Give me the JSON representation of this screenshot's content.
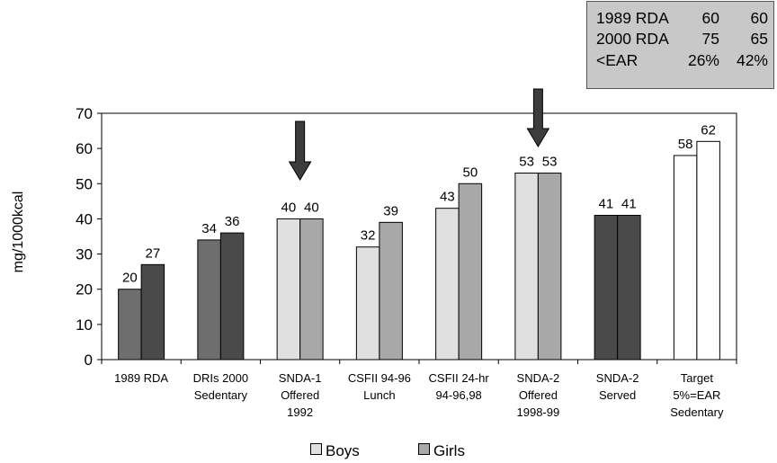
{
  "colors": {
    "dark_gray": "#6e6e6e",
    "darker_gray": "#4a4a4a",
    "light_gray": "#e0e0e0",
    "mid_gray": "#a8a8a8",
    "white": "#ffffff",
    "box_bg": "#c8c8c8"
  },
  "infobox": {
    "rows": [
      [
        "1989 RDA",
        "60",
        "60"
      ],
      [
        "2000 RDA",
        "75",
        "65"
      ],
      [
        "<EAR",
        "26%",
        "42%"
      ]
    ]
  },
  "chart_data": {
    "type": "bar",
    "title": "",
    "xlabel": "",
    "ylabel": "mg/1000kcal",
    "ylim": [
      0,
      70
    ],
    "yticks": [
      "0",
      "10",
      "20",
      "30",
      "40",
      "50",
      "60",
      "70"
    ],
    "grid": false,
    "legend_position": "bottom",
    "categories": [
      [
        "1989 RDA"
      ],
      [
        "DRIs 2000",
        "Sedentary"
      ],
      [
        "SNDA-1",
        "Offered",
        "1992"
      ],
      [
        "CSFII 94-96",
        "Lunch"
      ],
      [
        "CSFII 24-hr",
        "94-96,98"
      ],
      [
        "SNDA-2",
        "Offered",
        "1998-99"
      ],
      [
        "SNDA-2",
        "Served"
      ],
      [
        "Target",
        "5%=EAR",
        "Sedentary"
      ]
    ],
    "series": [
      {
        "name": "Boys",
        "values": [
          20,
          34,
          40,
          32,
          43,
          53,
          41,
          58
        ],
        "value_labels": [
          "20",
          "34",
          "40",
          "32",
          "43",
          "53",
          "41",
          "58"
        ]
      },
      {
        "name": "Girls",
        "values": [
          27,
          36,
          40,
          39,
          50,
          53,
          41,
          62
        ],
        "value_labels": [
          "27",
          "36",
          "40",
          "39",
          "50",
          "53",
          "41",
          "62"
        ]
      }
    ],
    "bar_colors": {
      "boys": [
        "dark_gray",
        "dark_gray",
        "light_gray",
        "light_gray",
        "light_gray",
        "light_gray",
        "darker_gray",
        "white"
      ],
      "girls": [
        "darker_gray",
        "darker_gray",
        "mid_gray",
        "mid_gray",
        "mid_gray",
        "mid_gray",
        "darker_gray",
        "white"
      ]
    },
    "arrows_on_categories": [
      2,
      5
    ]
  },
  "legend": {
    "boys_label": "Boys",
    "girls_label": "Girls"
  }
}
